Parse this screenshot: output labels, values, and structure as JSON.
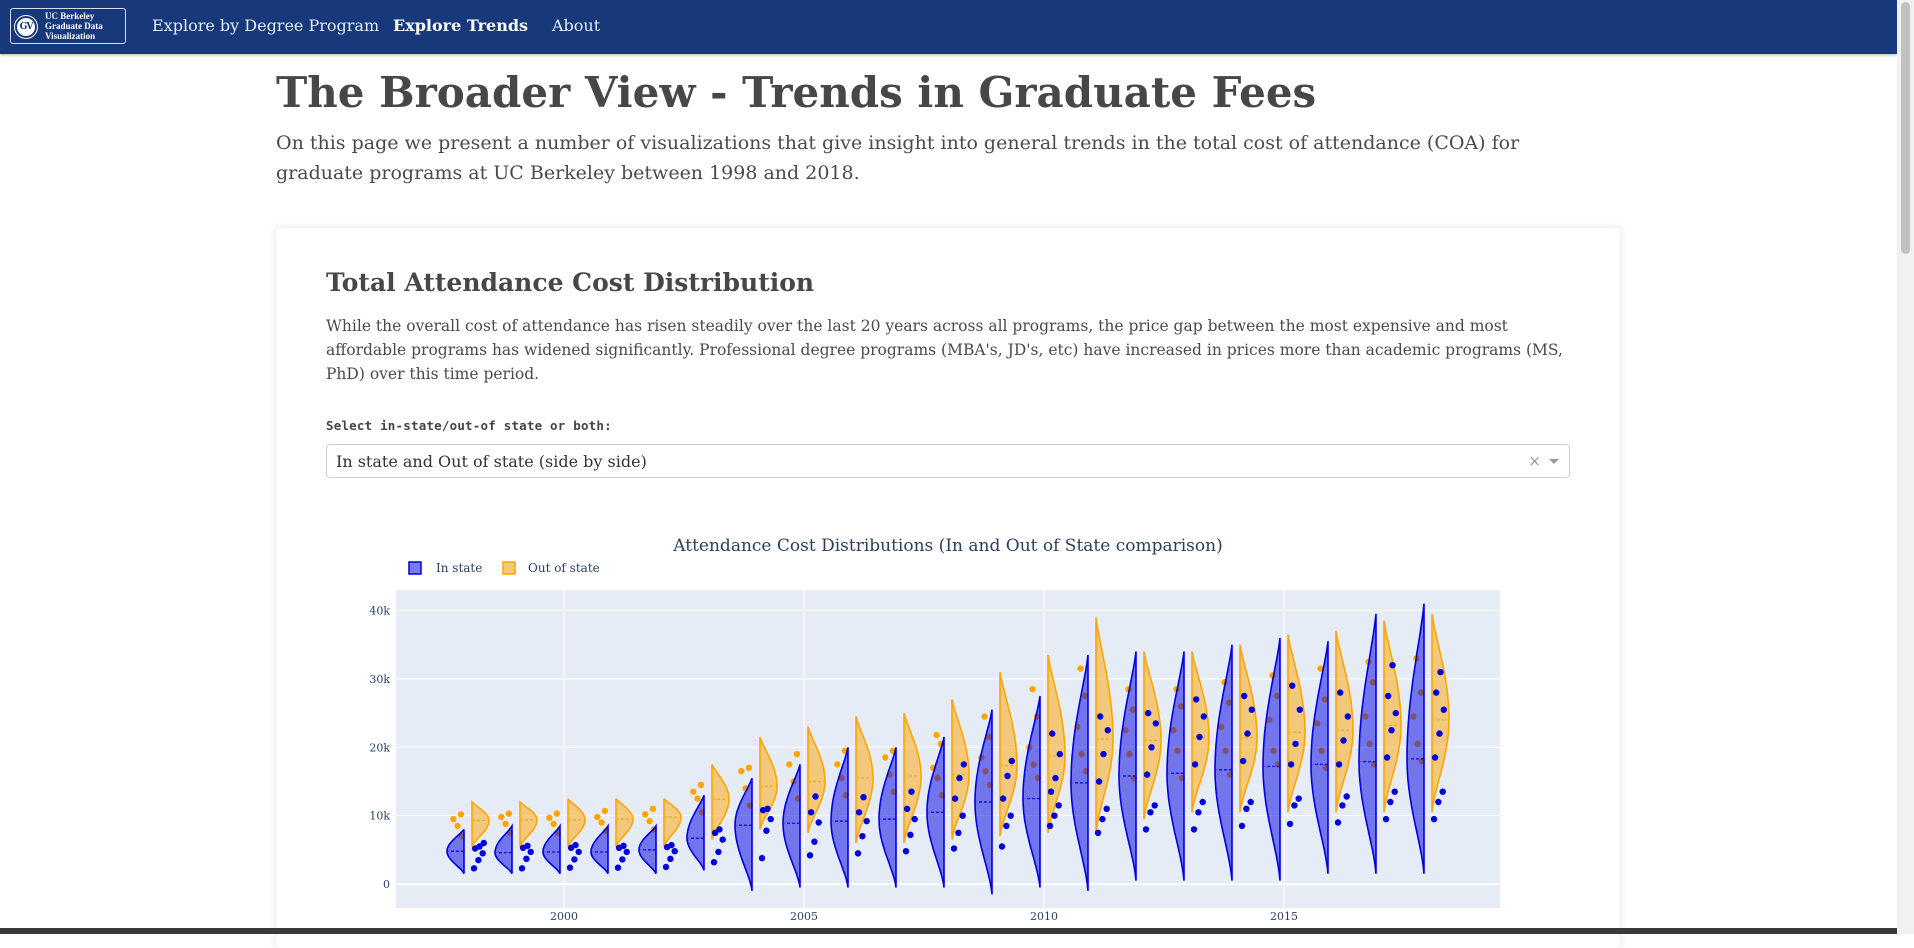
{
  "nav": {
    "logo_mark": "GV",
    "logo_lines": [
      "UC Berkeley",
      "Graduate Data",
      "Visualization"
    ],
    "links": [
      "Explore by Degree Program",
      "Explore Trends",
      "About"
    ]
  },
  "page": {
    "title": "The Broader View - Trends in Graduate Fees",
    "intro": "On this page we present a number of visualizations that give insight into general trends in the total cost of attendance (COA) for graduate programs at UC Berkeley between 1998 and 2018."
  },
  "section": {
    "title": "Total Attendance Cost Distribution",
    "description": "While the overall cost of attendance has risen steadily over the last 20 years across all programs, the price gap between the most expensive and most affordable programs has widened significantly. Professional degree programs (MBA's, JD's, etc) have increased in prices more than academic programs (MS, PhD) over this time period.",
    "select_label": "Select in-state/out-of state or both:",
    "select_value": "In state and Out of state (side by side)",
    "select_clear": "×"
  },
  "colors": {
    "navbar": "#17387a",
    "in_state": "#0000dd",
    "out_state": "#ffa500",
    "plot_bg": "#e5ecf6"
  },
  "chart_data": {
    "type": "violin",
    "title": "Attendance Cost Distributions (In and Out of State comparison)",
    "xlabel": "",
    "ylabel": "",
    "x_ticks": [
      2000,
      2005,
      2010,
      2015
    ],
    "y_ticks": [
      0,
      10000,
      20000,
      30000,
      40000
    ],
    "y_tick_labels": [
      "0",
      "10k",
      "20k",
      "30k",
      "40k"
    ],
    "xlim": [
      1996.5,
      2019.5
    ],
    "ylim": [
      -3500,
      43000
    ],
    "legend": "top-left",
    "grid": true,
    "series": [
      {
        "name": "In state",
        "color": "#0000dd",
        "years": [
          1998,
          1999,
          2000,
          2001,
          2002,
          2003,
          2004,
          2005,
          2006,
          2007,
          2008,
          2009,
          2010,
          2011,
          2012,
          2013,
          2014,
          2015,
          2016,
          2017,
          2018
        ],
        "min": [
          1500,
          1500,
          1500,
          1500,
          1500,
          2000,
          -1000,
          -500,
          -500,
          -500,
          -500,
          -1500,
          -500,
          -1000,
          500,
          500,
          500,
          500,
          1500,
          1500,
          1500
        ],
        "median": [
          4800,
          4600,
          4700,
          4700,
          5000,
          6700,
          8600,
          8900,
          9200,
          9500,
          10500,
          12000,
          12500,
          14800,
          15800,
          16200,
          16700,
          17200,
          17500,
          17900,
          18300
        ],
        "max": [
          8000,
          8500,
          8500,
          8500,
          8500,
          13000,
          15500,
          17500,
          20000,
          20000,
          21500,
          25500,
          27500,
          33500,
          34000,
          34000,
          35000,
          36000,
          35500,
          39500,
          41000
        ],
        "points": [
          [
            2300,
            3500,
            4500,
            5200,
            5500,
            6000
          ],
          [
            2300,
            3700,
            4700,
            5300,
            5600
          ],
          [
            2400,
            3600,
            4700,
            5300,
            5700
          ],
          [
            2400,
            3600,
            4700,
            5300,
            5600
          ],
          [
            2500,
            3700,
            4800,
            5400,
            5700
          ],
          [
            3200,
            4700,
            6500,
            7500,
            8000
          ],
          [
            3800,
            7800,
            9500,
            10800,
            11000
          ],
          [
            4200,
            6200,
            9000,
            10500,
            12800
          ],
          [
            4500,
            7000,
            9200,
            10500,
            12700
          ],
          [
            4800,
            7200,
            9500,
            11000,
            13500
          ],
          [
            5200,
            7500,
            10000,
            12500,
            15500,
            17500
          ],
          [
            5500,
            8500,
            10000,
            12500,
            15800,
            18000
          ],
          [
            8500,
            10000,
            11500,
            13500,
            15500,
            19000,
            22000
          ],
          [
            7500,
            9500,
            11000,
            15000,
            19000,
            22500,
            24500
          ],
          [
            8000,
            10500,
            11500,
            16000,
            20000,
            23500,
            25000
          ],
          [
            8000,
            10500,
            12000,
            17500,
            21500,
            24500,
            27000
          ],
          [
            8500,
            11000,
            12000,
            18000,
            22000,
            25500,
            27500
          ],
          [
            8800,
            11500,
            12500,
            17500,
            20500,
            25500,
            29000
          ],
          [
            9000,
            11500,
            12800,
            17500,
            21000,
            24500,
            28000
          ],
          [
            9500,
            12000,
            13500,
            18500,
            22500,
            25000,
            27500,
            32000
          ],
          [
            9500,
            12000,
            13500,
            18500,
            22000,
            25500,
            28000,
            31000
          ]
        ]
      },
      {
        "name": "Out of state",
        "color": "#ffa500",
        "years": [
          1998,
          1999,
          2000,
          2001,
          2002,
          2003,
          2004,
          2005,
          2006,
          2007,
          2008,
          2009,
          2010,
          2011,
          2012,
          2013,
          2014,
          2015,
          2016,
          2017,
          2018
        ],
        "min": [
          5500,
          5500,
          5500,
          5500,
          5500,
          6500,
          8000,
          7500,
          6000,
          6000,
          6500,
          7000,
          7500,
          7500,
          9500,
          10500,
          10500,
          10500,
          10500,
          10500,
          10500
        ],
        "median": [
          9300,
          9400,
          9400,
          9500,
          9800,
          12400,
          14300,
          15000,
          15500,
          15800,
          16000,
          17300,
          18700,
          21200,
          21000,
          21400,
          21400,
          22200,
          22500,
          23200,
          24000
        ],
        "max": [
          12000,
          12000,
          12500,
          12500,
          12500,
          17500,
          21500,
          23000,
          24500,
          25000,
          27000,
          31000,
          33500,
          39000,
          34000,
          34000,
          35000,
          36500,
          37000,
          38500,
          39500
        ],
        "points": [
          [
            7000,
            8500,
            9500,
            10200
          ],
          [
            7500,
            8800,
            9800,
            10300
          ],
          [
            7500,
            8800,
            9700,
            10300
          ],
          [
            7800,
            9000,
            9800,
            10700
          ],
          [
            8000,
            9200,
            10200,
            11000
          ],
          [
            10500,
            12500,
            13500,
            14500
          ],
          [
            11500,
            14000,
            16500,
            17000
          ],
          [
            12500,
            15000,
            17500,
            19000
          ],
          [
            13000,
            15500,
            17500,
            19500
          ],
          [
            13500,
            16000,
            18500,
            19500
          ],
          [
            13000,
            15500,
            17000,
            20500,
            21800
          ],
          [
            14500,
            16500,
            18500,
            21500,
            24500
          ],
          [
            15500,
            17500,
            20000,
            24500,
            28500
          ],
          [
            16500,
            19000,
            23000,
            27500,
            31500
          ],
          [
            15500,
            19000,
            22500,
            25500,
            28500
          ],
          [
            15500,
            19500,
            22500,
            26000,
            28500
          ],
          [
            16000,
            19500,
            23000,
            26500,
            29500
          ],
          [
            17500,
            19500,
            24000,
            27500,
            30500
          ],
          [
            17000,
            19500,
            23500,
            27000,
            31500
          ],
          [
            17500,
            20500,
            24500,
            29500,
            32500
          ],
          [
            18000,
            20500,
            24500,
            28000,
            33000
          ]
        ]
      }
    ]
  }
}
